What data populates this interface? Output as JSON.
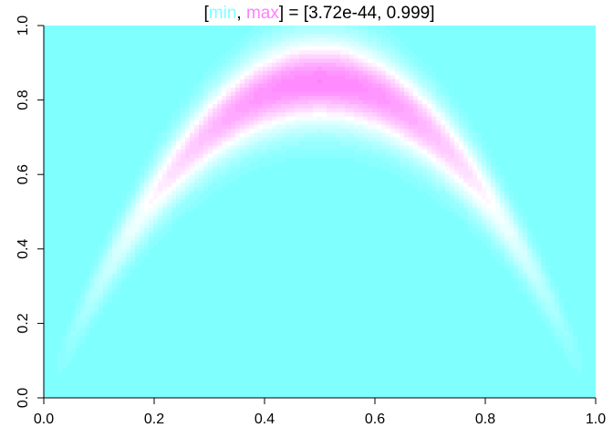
{
  "chart_data": {
    "type": "heatmap",
    "title": {
      "open_bracket": "[",
      "min_label": "min",
      "separator": ", ",
      "max_label": "max",
      "close_text": "] = [3.72e-44, 0.999]"
    },
    "value_range": [
      3.72e-44,
      0.999
    ],
    "xlim": [
      0,
      1
    ],
    "ylim": [
      0,
      1
    ],
    "x_ticks": [
      0.0,
      0.2,
      0.4,
      0.6,
      0.8,
      1.0
    ],
    "y_ticks": [
      0.0,
      0.2,
      0.4,
      0.6,
      0.8,
      1.0
    ],
    "x_tick_labels": [
      "0.0",
      "0.2",
      "0.4",
      "0.6",
      "0.8",
      "1.0"
    ],
    "y_tick_labels": [
      "0.0",
      "0.2",
      "0.4",
      "0.6",
      "0.8",
      "1.0"
    ],
    "xlabel": "",
    "ylabel": "",
    "grid": false,
    "legend": "none",
    "colors": {
      "min": "#80ffff",
      "mid": "#ffffff",
      "max": "#ff80ff"
    },
    "surface": {
      "ridge_curve": "y = 3.4 * x * (1 - x)",
      "ridge_peak": {
        "x": 0.5,
        "y": 0.85
      },
      "high_band_x_range": [
        0.21,
        0.79
      ]
    }
  }
}
